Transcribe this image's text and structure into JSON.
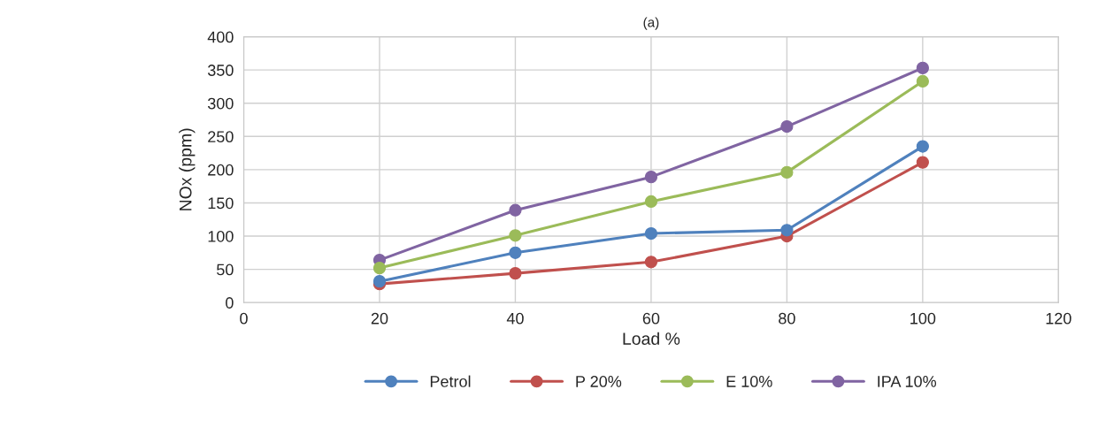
{
  "chart_data": {
    "type": "line",
    "title": "(a)",
    "xlabel": "Load %",
    "ylabel": "NOx (ppm)",
    "x": [
      20,
      40,
      60,
      80,
      100
    ],
    "series": [
      {
        "name": "Petrol",
        "color": "#4f81bd",
        "values": [
          32,
          75,
          104,
          109,
          235
        ]
      },
      {
        "name": "P 20%",
        "color": "#c0504d",
        "values": [
          28,
          44,
          61,
          100,
          211
        ]
      },
      {
        "name": "E 10%",
        "color": "#9bbb59",
        "values": [
          52,
          101,
          152,
          196,
          333
        ]
      },
      {
        "name": "IPA 10%",
        "color": "#8064a2",
        "values": [
          64,
          139,
          189,
          265,
          353
        ]
      }
    ],
    "xlim": [
      0,
      120
    ],
    "xticks": [
      0,
      20,
      40,
      60,
      80,
      100,
      120
    ],
    "ylim": [
      0,
      400
    ],
    "yticks": [
      0,
      50,
      100,
      150,
      200,
      250,
      300,
      350,
      400
    ],
    "grid": true,
    "legend": "bottom",
    "marker": "circle",
    "line_style": "solid"
  }
}
